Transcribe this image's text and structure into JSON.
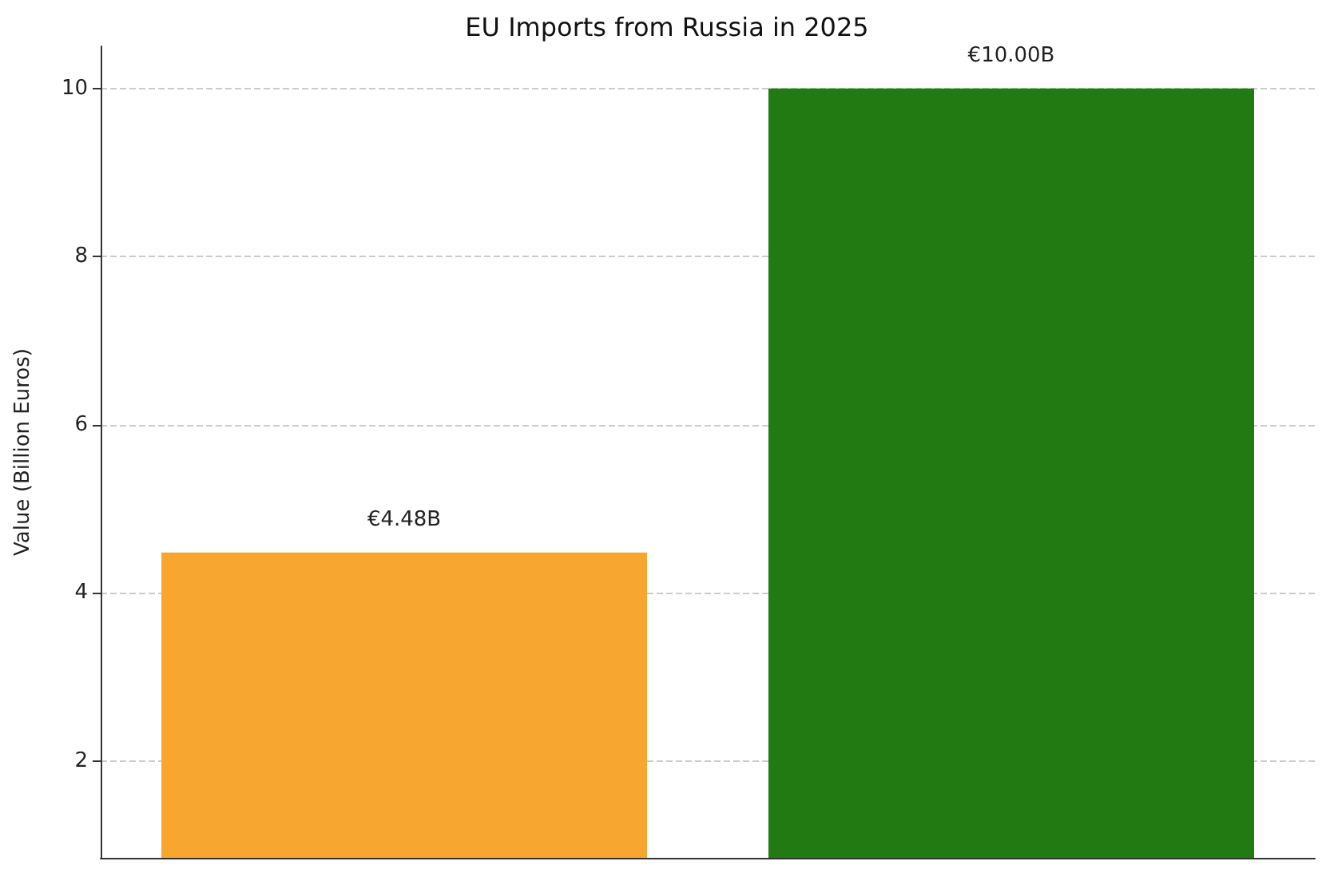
{
  "chart_data": {
    "type": "bar",
    "title": "EU Imports from Russia in 2025",
    "ylabel": "Value (Billion Euros)",
    "categories": [
      null,
      null
    ],
    "values": [
      4.48,
      10.0
    ],
    "colors": [
      "#f7a72f",
      "#227b12"
    ],
    "value_labels": [
      "€4.48B",
      "€10.00B"
    ],
    "ylim": [
      0.85,
      10.5
    ],
    "yticks": [
      2,
      4,
      6,
      8,
      10
    ],
    "grid": "y"
  }
}
